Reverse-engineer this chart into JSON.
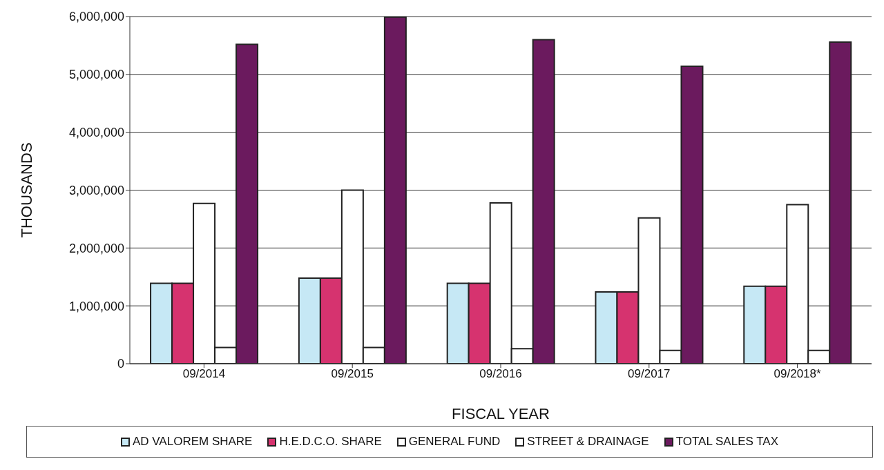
{
  "chart_data": {
    "type": "bar",
    "xlabel": "FISCAL YEAR",
    "ylabel": "THOUSANDS",
    "categories": [
      "09/2014",
      "09/2015",
      "09/2016",
      "09/2017",
      "09/2018*"
    ],
    "series": [
      {
        "name": "AD VALOREM SHARE",
        "color": "#c6e8f5",
        "values": [
          1390000,
          1480000,
          1390000,
          1240000,
          1340000
        ]
      },
      {
        "name": "H.E.D.C.O. SHARE",
        "color": "#d6336f",
        "values": [
          1390000,
          1480000,
          1390000,
          1240000,
          1340000
        ]
      },
      {
        "name": "GENERAL FUND",
        "color": "#ffffff",
        "values": [
          2770000,
          3000000,
          2780000,
          2520000,
          2750000
        ]
      },
      {
        "name": "STREET & DRAINAGE",
        "color": "#ffffff",
        "values": [
          280000,
          280000,
          260000,
          230000,
          230000
        ]
      },
      {
        "name": "TOTAL SALES TAX",
        "color": "#6b1a5e",
        "values": [
          5520000,
          5990000,
          5600000,
          5140000,
          5560000
        ]
      }
    ],
    "ylim": [
      0,
      6000000
    ],
    "yticks": [
      0,
      {
        "value": 1000000,
        "label": "1,000,000"
      },
      {
        "value": 2000000,
        "label": "2,000,000"
      },
      {
        "value": 3000000,
        "label": "3,000,000"
      },
      {
        "value": 4000000,
        "label": "4,000,000"
      },
      {
        "value": 5000000,
        "label": "5,000,000"
      },
      {
        "value": 6000000,
        "label": "6,000,000"
      }
    ],
    "grid": "y",
    "legend": "bottom"
  }
}
